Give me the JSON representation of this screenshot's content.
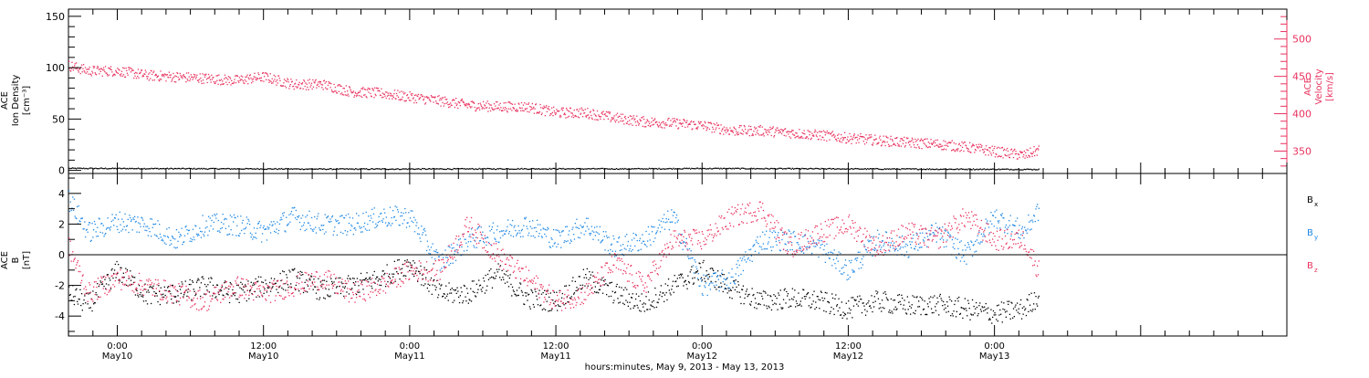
{
  "chart_data": [
    {
      "type": "scatter",
      "panel": "top",
      "ylabel_left": [
        "ACE",
        "Ion Density",
        "[cm⁻³]"
      ],
      "ylabel_right": [
        "ACE",
        "Velocity",
        "[km/s]"
      ],
      "ylim_left": [
        -3,
        157
      ],
      "ylim_right": [
        320,
        540
      ],
      "left_ticks": [
        "0",
        "50",
        "100",
        "150"
      ],
      "right_ticks": [
        "350",
        "400",
        "450",
        "500"
      ],
      "series": [
        {
          "axis": "left",
          "color": "#000000",
          "x": [
            -0.167,
            0,
            0.25,
            0.5,
            0.75,
            1.0,
            1.25,
            1.5,
            1.75,
            2.0,
            2.25,
            2.5,
            2.75,
            3.0,
            3.15
          ],
          "y": [
            2.5,
            2.4,
            2.2,
            2.0,
            1.8,
            1.9,
            2.0,
            2.1,
            2.0,
            2.4,
            2.2,
            2.0,
            1.8,
            1.6,
            1.5
          ]
        },
        {
          "axis": "right",
          "color": "#e8335f",
          "x": [
            -0.167,
            -0.1,
            0,
            0.1,
            0.2,
            0.3,
            0.4,
            0.5,
            0.6,
            0.7,
            0.8,
            0.9,
            1.0,
            1.1,
            1.2,
            1.3,
            1.4,
            1.5,
            1.6,
            1.7,
            1.8,
            1.9,
            2.0,
            2.1,
            2.2,
            2.3,
            2.4,
            2.5,
            2.6,
            2.7,
            2.8,
            2.9,
            3.0,
            3.1,
            3.15
          ],
          "y": [
            465,
            458,
            458,
            452,
            450,
            448,
            445,
            450,
            440,
            440,
            430,
            428,
            423,
            418,
            412,
            410,
            410,
            402,
            402,
            395,
            390,
            388,
            385,
            378,
            378,
            375,
            372,
            368,
            365,
            362,
            360,
            356,
            350,
            345,
            352
          ]
        }
      ]
    },
    {
      "type": "scatter",
      "panel": "bottom",
      "ylabel_left": [
        "ACE",
        "B",
        "[nT]"
      ],
      "ylim": [
        -5.3,
        5.3
      ],
      "ticks": [
        "-4",
        "-2",
        "0",
        "2",
        "4"
      ],
      "legend": [
        "B",
        "B",
        "B"
      ],
      "legend_subs": [
        "x",
        "y",
        "z"
      ],
      "series": [
        {
          "name": "Bx",
          "color": "#000000",
          "x": [
            -0.167,
            -0.1,
            0,
            0.1,
            0.2,
            0.3,
            0.4,
            0.5,
            0.6,
            0.7,
            0.8,
            0.9,
            1.0,
            1.1,
            1.2,
            1.3,
            1.4,
            1.5,
            1.6,
            1.7,
            1.8,
            1.9,
            2.0,
            2.1,
            2.2,
            2.3,
            2.4,
            2.5,
            2.6,
            2.7,
            2.8,
            2.9,
            3.0,
            3.1,
            3.15
          ],
          "y": [
            -2.5,
            -3.2,
            -1.0,
            -2.6,
            -2.5,
            -2.0,
            -2.5,
            -2.0,
            -1.5,
            -2.3,
            -2.0,
            -1.5,
            -0.5,
            -2.5,
            -2.5,
            -1.2,
            -2.8,
            -3.0,
            -1.5,
            -2.5,
            -3.2,
            -2.0,
            -1.0,
            -2.2,
            -3.0,
            -2.8,
            -3.0,
            -3.5,
            -3.0,
            -3.3,
            -3.2,
            -3.5,
            -3.8,
            -3.5,
            -2.6
          ]
        },
        {
          "name": "By",
          "color": "#1e88e5",
          "x": [
            -0.167,
            -0.1,
            0,
            0.1,
            0.2,
            0.3,
            0.4,
            0.5,
            0.6,
            0.7,
            0.8,
            0.9,
            1.0,
            1.1,
            1.2,
            1.3,
            1.4,
            1.5,
            1.6,
            1.7,
            1.8,
            1.9,
            2.0,
            2.1,
            2.2,
            2.3,
            2.4,
            2.5,
            2.6,
            2.7,
            2.8,
            2.9,
            3.0,
            3.1,
            3.15
          ],
          "y": [
            3.6,
            1.5,
            2.2,
            2.0,
            1.0,
            2.0,
            2.0,
            1.5,
            2.5,
            2.0,
            2.0,
            2.5,
            2.5,
            -0.5,
            1.0,
            1.5,
            2.0,
            1.0,
            2.0,
            0.5,
            1.0,
            2.5,
            -2.0,
            -1.5,
            1.0,
            1.0,
            0.5,
            -1.0,
            1.0,
            0.5,
            1.5,
            0.0,
            2.5,
            1.5,
            3.0
          ]
        },
        {
          "name": "Bz",
          "color": "#e8335f",
          "x": [
            -0.167,
            -0.1,
            0,
            0.1,
            0.2,
            0.3,
            0.4,
            0.5,
            0.6,
            0.7,
            0.8,
            0.9,
            1.0,
            1.1,
            1.2,
            1.3,
            1.4,
            1.5,
            1.6,
            1.7,
            1.8,
            1.9,
            2.0,
            2.1,
            2.2,
            2.3,
            2.4,
            2.5,
            2.6,
            2.7,
            2.8,
            2.9,
            3.0,
            3.1,
            3.15
          ],
          "y": [
            0.5,
            -2.5,
            -1.5,
            -2.0,
            -2.5,
            -3.0,
            -2.0,
            -2.5,
            -2.0,
            -1.5,
            -2.5,
            -2.0,
            -1.0,
            -1.0,
            2.0,
            0.0,
            -1.5,
            -3.0,
            -2.5,
            -0.5,
            -2.0,
            1.0,
            1.0,
            2.5,
            3.0,
            0.5,
            1.5,
            2.0,
            0.5,
            1.5,
            1.0,
            2.5,
            1.0,
            1.0,
            -1.0
          ]
        }
      ]
    }
  ],
  "x_axis": {
    "xlim": [
      -0.167,
      4.0
    ],
    "major_ticks": [
      {
        "x": 0,
        "time": "0:00",
        "date": "May10"
      },
      {
        "x": 0.5,
        "time": "12:00",
        "date": "May10"
      },
      {
        "x": 1.0,
        "time": "0:00",
        "date": "May11"
      },
      {
        "x": 1.5,
        "time": "12:00",
        "date": "May11"
      },
      {
        "x": 2.0,
        "time": "0:00",
        "date": "May12"
      },
      {
        "x": 2.5,
        "time": "12:00",
        "date": "May12"
      },
      {
        "x": 3.0,
        "time": "0:00",
        "date": "May13"
      }
    ],
    "xlabel": "hours:minutes, May  9, 2013 - May 13, 2013"
  }
}
